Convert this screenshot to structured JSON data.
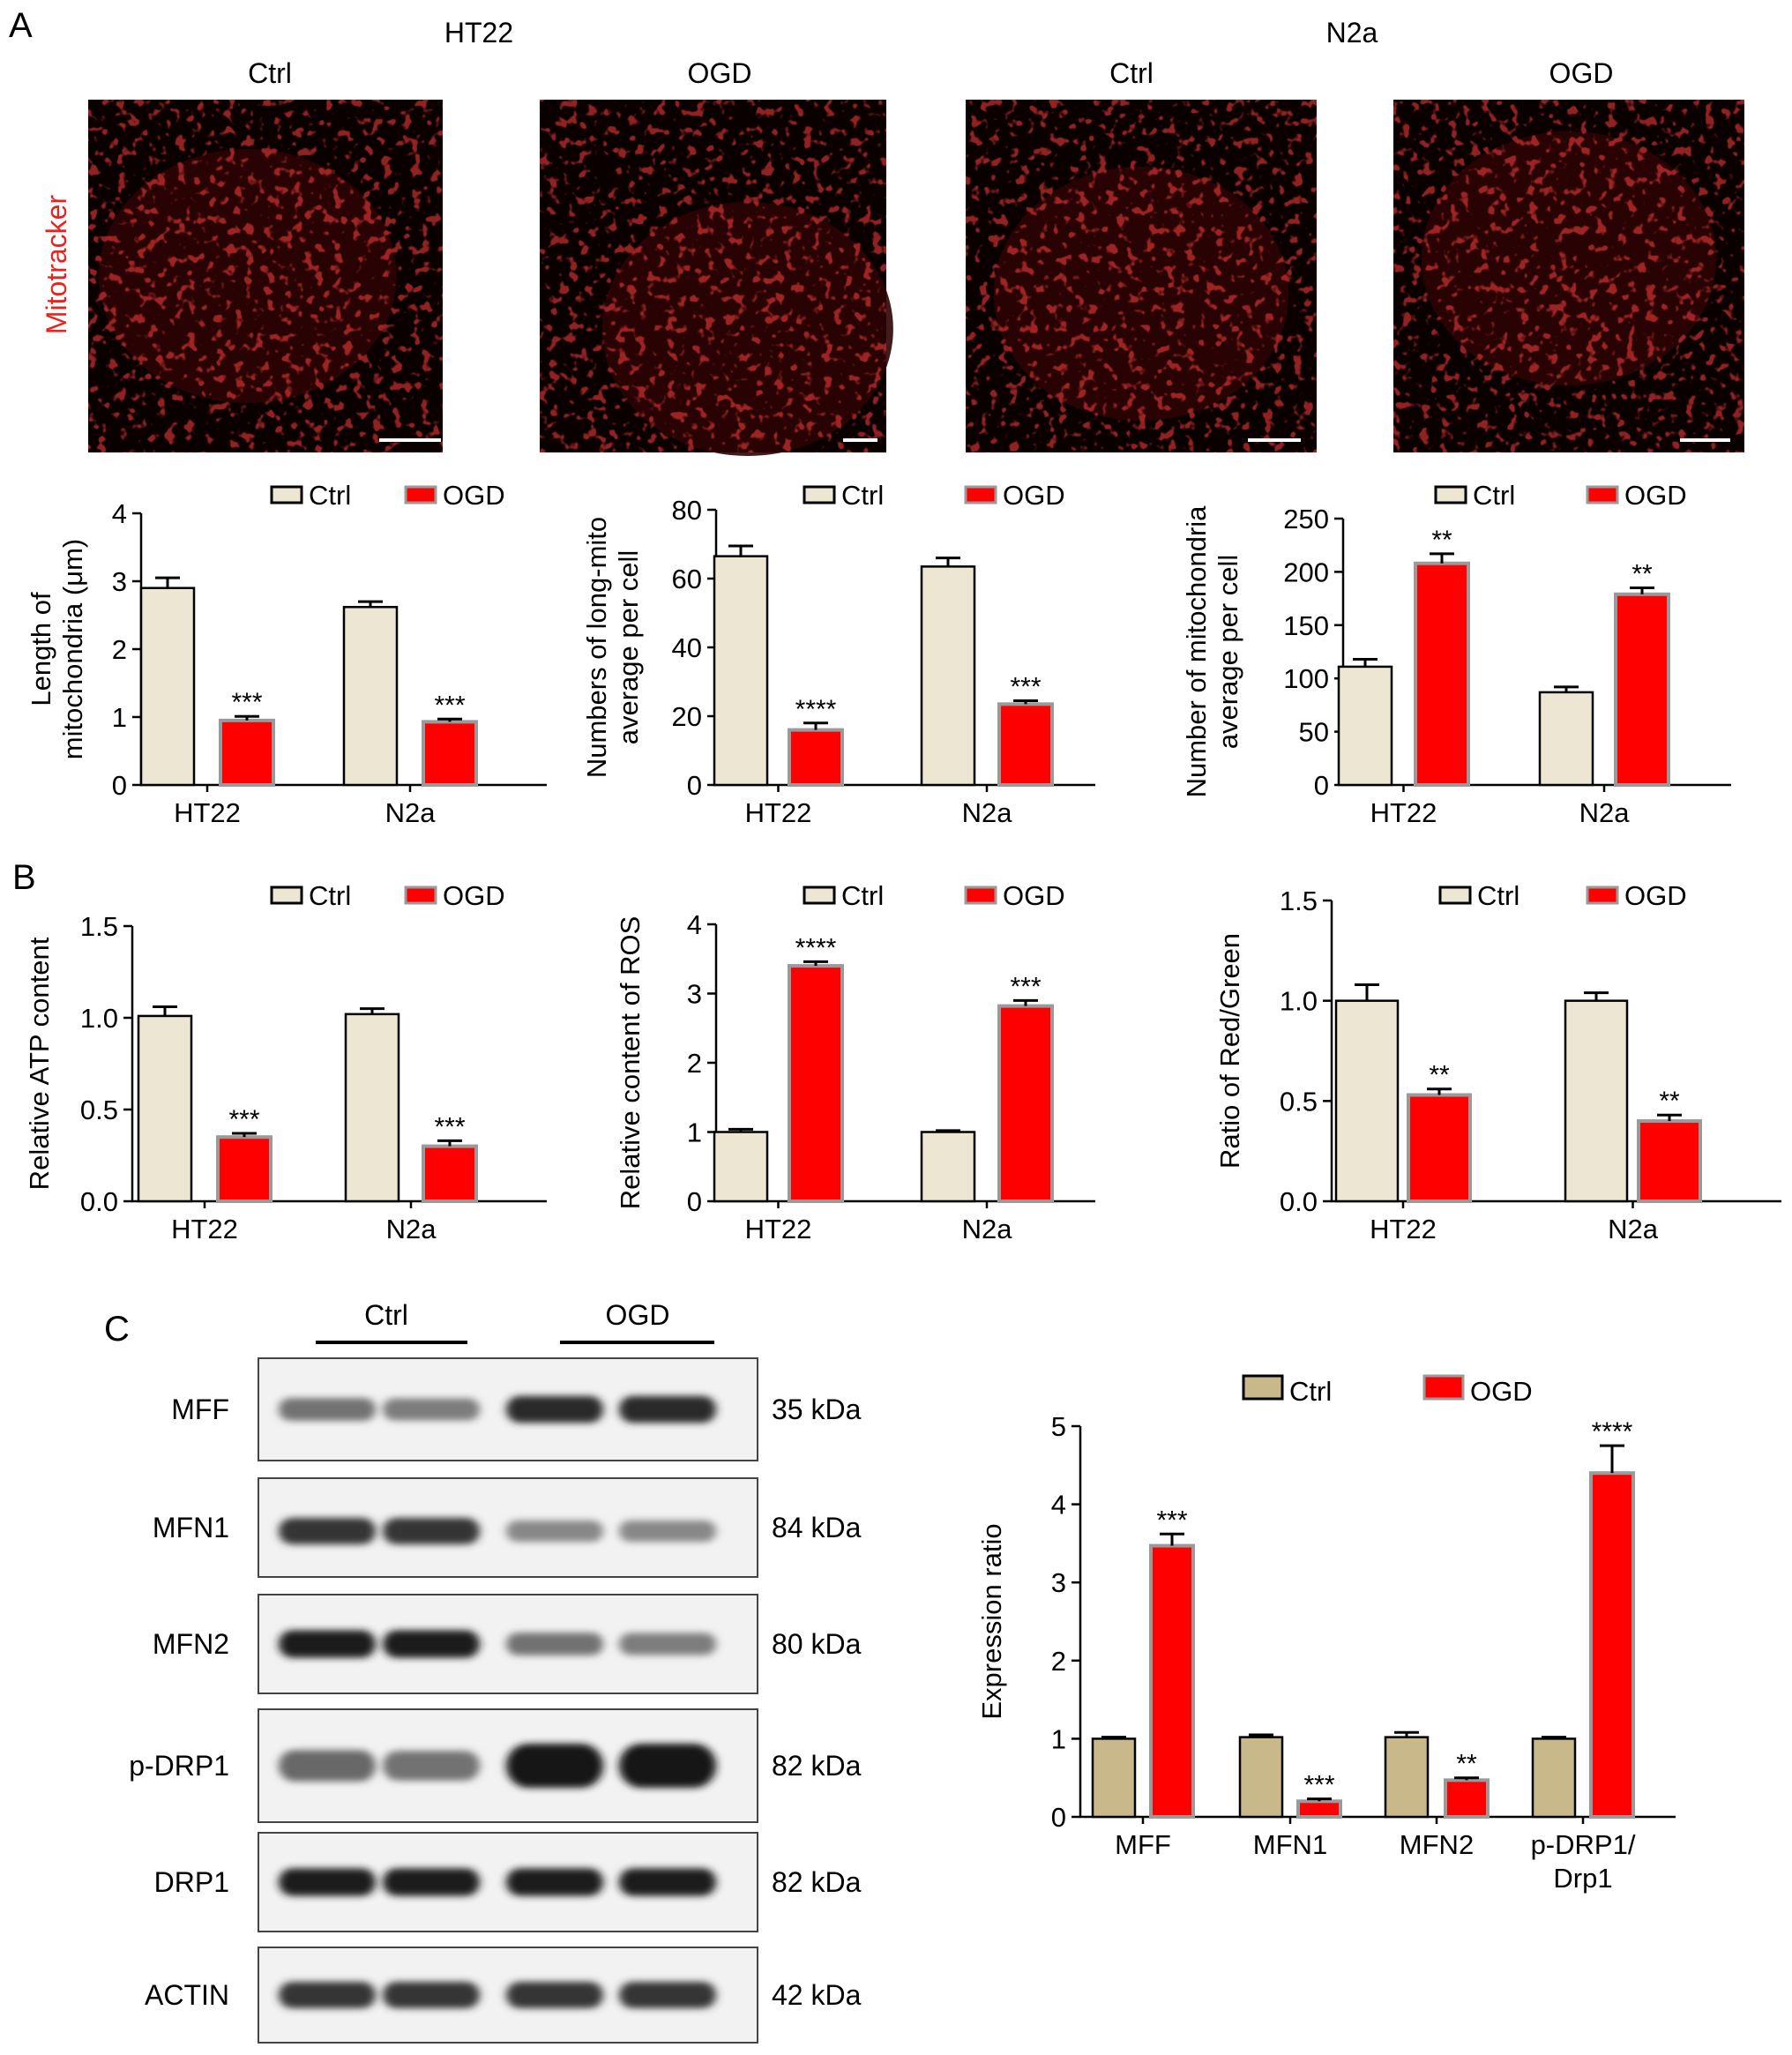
{
  "panels": {
    "A": "A",
    "B": "B",
    "C": "C"
  },
  "panel_a": {
    "cell_lines": [
      "HT22",
      "N2a"
    ],
    "conditions": [
      "Ctrl",
      "OGD",
      "Ctrl",
      "OGD"
    ],
    "stain_label": "Mitotracker",
    "stain_color": "#e8231f"
  },
  "colors": {
    "ctrl_fill": "#ece6d3",
    "ogd_fill": "#ff0000",
    "ogd_outline": "#9a9a9a",
    "ctrl_fill_c": "#c9b88a"
  },
  "chart_data": [
    {
      "id": "length",
      "type": "bar",
      "categories": [
        "HT22",
        "N2a"
      ],
      "ylabel": [
        "Length of",
        "mitochondria (μm)"
      ],
      "ylim": [
        0,
        4
      ],
      "yticks": [
        "0",
        "1",
        "2",
        "3",
        "4"
      ],
      "legend": [
        "Ctrl",
        "OGD"
      ],
      "series": [
        {
          "name": "Ctrl",
          "values": [
            2.9,
            2.62
          ],
          "errors": [
            0.15,
            0.08
          ],
          "sig": [
            "",
            ""
          ]
        },
        {
          "name": "OGD",
          "values": [
            0.95,
            0.93
          ],
          "errors": [
            0.06,
            0.04
          ],
          "sig": [
            "***",
            "***"
          ]
        }
      ]
    },
    {
      "id": "longmito",
      "type": "bar",
      "categories": [
        "HT22",
        "N2a"
      ],
      "ylabel": [
        "Numbers of long-mito",
        "average per cell"
      ],
      "ylim": [
        0,
        80
      ],
      "yticks": [
        "0",
        "20",
        "40",
        "60",
        "80"
      ],
      "legend": [
        "Ctrl",
        "OGD"
      ],
      "series": [
        {
          "name": "Ctrl",
          "values": [
            66.5,
            63.5
          ],
          "errors": [
            3.0,
            2.5
          ],
          "sig": [
            "",
            ""
          ]
        },
        {
          "name": "OGD",
          "values": [
            16,
            23.5
          ],
          "errors": [
            2.0,
            1.0
          ],
          "sig": [
            "****",
            "***"
          ]
        }
      ]
    },
    {
      "id": "count",
      "type": "bar",
      "categories": [
        "HT22",
        "N2a"
      ],
      "ylabel": [
        "Number of mitochondria",
        "average per cell"
      ],
      "ylim": [
        0,
        250
      ],
      "yticks": [
        "0",
        "50",
        "100",
        "150",
        "200",
        "250"
      ],
      "legend": [
        "Ctrl",
        "OGD"
      ],
      "series": [
        {
          "name": "Ctrl",
          "values": [
            111,
            87
          ],
          "errors": [
            7,
            5
          ],
          "sig": [
            "",
            ""
          ]
        },
        {
          "name": "OGD",
          "values": [
            208,
            179
          ],
          "errors": [
            9,
            6
          ],
          "sig": [
            "**",
            "**"
          ]
        }
      ]
    },
    {
      "id": "atp",
      "type": "bar",
      "categories": [
        "HT22",
        "N2a"
      ],
      "ylabel": [
        "Relative ATP content"
      ],
      "ylim": [
        0,
        1.5
      ],
      "yticks": [
        "0.0",
        "0.5",
        "1.0",
        "1.5"
      ],
      "legend": [
        "Ctrl",
        "OGD"
      ],
      "series": [
        {
          "name": "Ctrl",
          "values": [
            1.01,
            1.02
          ],
          "errors": [
            0.05,
            0.03
          ],
          "sig": [
            "",
            ""
          ]
        },
        {
          "name": "OGD",
          "values": [
            0.35,
            0.3
          ],
          "errors": [
            0.02,
            0.03
          ],
          "sig": [
            "***",
            "***"
          ]
        }
      ]
    },
    {
      "id": "ros",
      "type": "bar",
      "categories": [
        "HT22",
        "N2a"
      ],
      "ylabel": [
        "Relative content of ROS"
      ],
      "ylim": [
        0,
        4
      ],
      "yticks": [
        "0",
        "1",
        "2",
        "3",
        "4"
      ],
      "legend": [
        "Ctrl",
        "OGD"
      ],
      "series": [
        {
          "name": "Ctrl",
          "values": [
            1.0,
            1.0
          ],
          "errors": [
            0.04,
            0.02
          ],
          "sig": [
            "",
            ""
          ]
        },
        {
          "name": "OGD",
          "values": [
            3.4,
            2.82
          ],
          "errors": [
            0.06,
            0.08
          ],
          "sig": [
            "****",
            "***"
          ]
        }
      ]
    },
    {
      "id": "ratio",
      "type": "bar",
      "categories": [
        "HT22",
        "N2a"
      ],
      "ylabel": [
        "Ratio of Red/Green"
      ],
      "ylim": [
        0,
        1.5
      ],
      "yticks": [
        "0.0",
        "0.5",
        "1.0",
        "1.5"
      ],
      "legend": [
        "Ctrl",
        "OGD"
      ],
      "series": [
        {
          "name": "Ctrl",
          "values": [
            1.0,
            1.0
          ],
          "errors": [
            0.08,
            0.04
          ],
          "sig": [
            "",
            ""
          ]
        },
        {
          "name": "OGD",
          "values": [
            0.53,
            0.4
          ],
          "errors": [
            0.03,
            0.03
          ],
          "sig": [
            "**",
            "**"
          ]
        }
      ]
    },
    {
      "id": "expr",
      "type": "bar",
      "categories": [
        "MFF",
        "MFN1",
        "MFN2",
        "p-DRP1/\nDrp1"
      ],
      "ylabel": [
        "Expression ratio"
      ],
      "ylim": [
        0,
        5
      ],
      "yticks": [
        "0",
        "1",
        "2",
        "3",
        "4",
        "5"
      ],
      "legend": [
        "Ctrl",
        "OGD"
      ],
      "series": [
        {
          "name": "Ctrl",
          "values": [
            1.0,
            1.02,
            1.02,
            1.0
          ],
          "errors": [
            0.02,
            0.03,
            0.06,
            0.02
          ],
          "sig": [
            "",
            "",
            "",
            ""
          ]
        },
        {
          "name": "OGD",
          "values": [
            3.47,
            0.2,
            0.47,
            4.4
          ],
          "errors": [
            0.15,
            0.03,
            0.03,
            0.35
          ],
          "sig": [
            "***",
            "***",
            "**",
            "****"
          ]
        }
      ]
    }
  ],
  "western": {
    "groups": [
      "Ctrl",
      "OGD"
    ],
    "rows": [
      {
        "protein": "MFF",
        "size": "35 kDa",
        "intensity": [
          0.55,
          0.5,
          0.9,
          0.9
        ]
      },
      {
        "protein": "MFN1",
        "size": "84 kDa",
        "intensity": [
          0.85,
          0.85,
          0.45,
          0.45
        ]
      },
      {
        "protein": "MFN2",
        "size": "80 kDa",
        "intensity": [
          0.95,
          0.95,
          0.55,
          0.5
        ]
      },
      {
        "protein": "p-DRP1",
        "size": "82 kDa",
        "intensity": [
          0.6,
          0.55,
          1.0,
          1.0
        ]
      },
      {
        "protein": "DRP1",
        "size": "82 kDa",
        "intensity": [
          0.95,
          0.95,
          0.95,
          0.95
        ]
      },
      {
        "protein": "ACTIN",
        "size": "42 kDa",
        "intensity": [
          0.85,
          0.85,
          0.85,
          0.85
        ]
      }
    ]
  }
}
